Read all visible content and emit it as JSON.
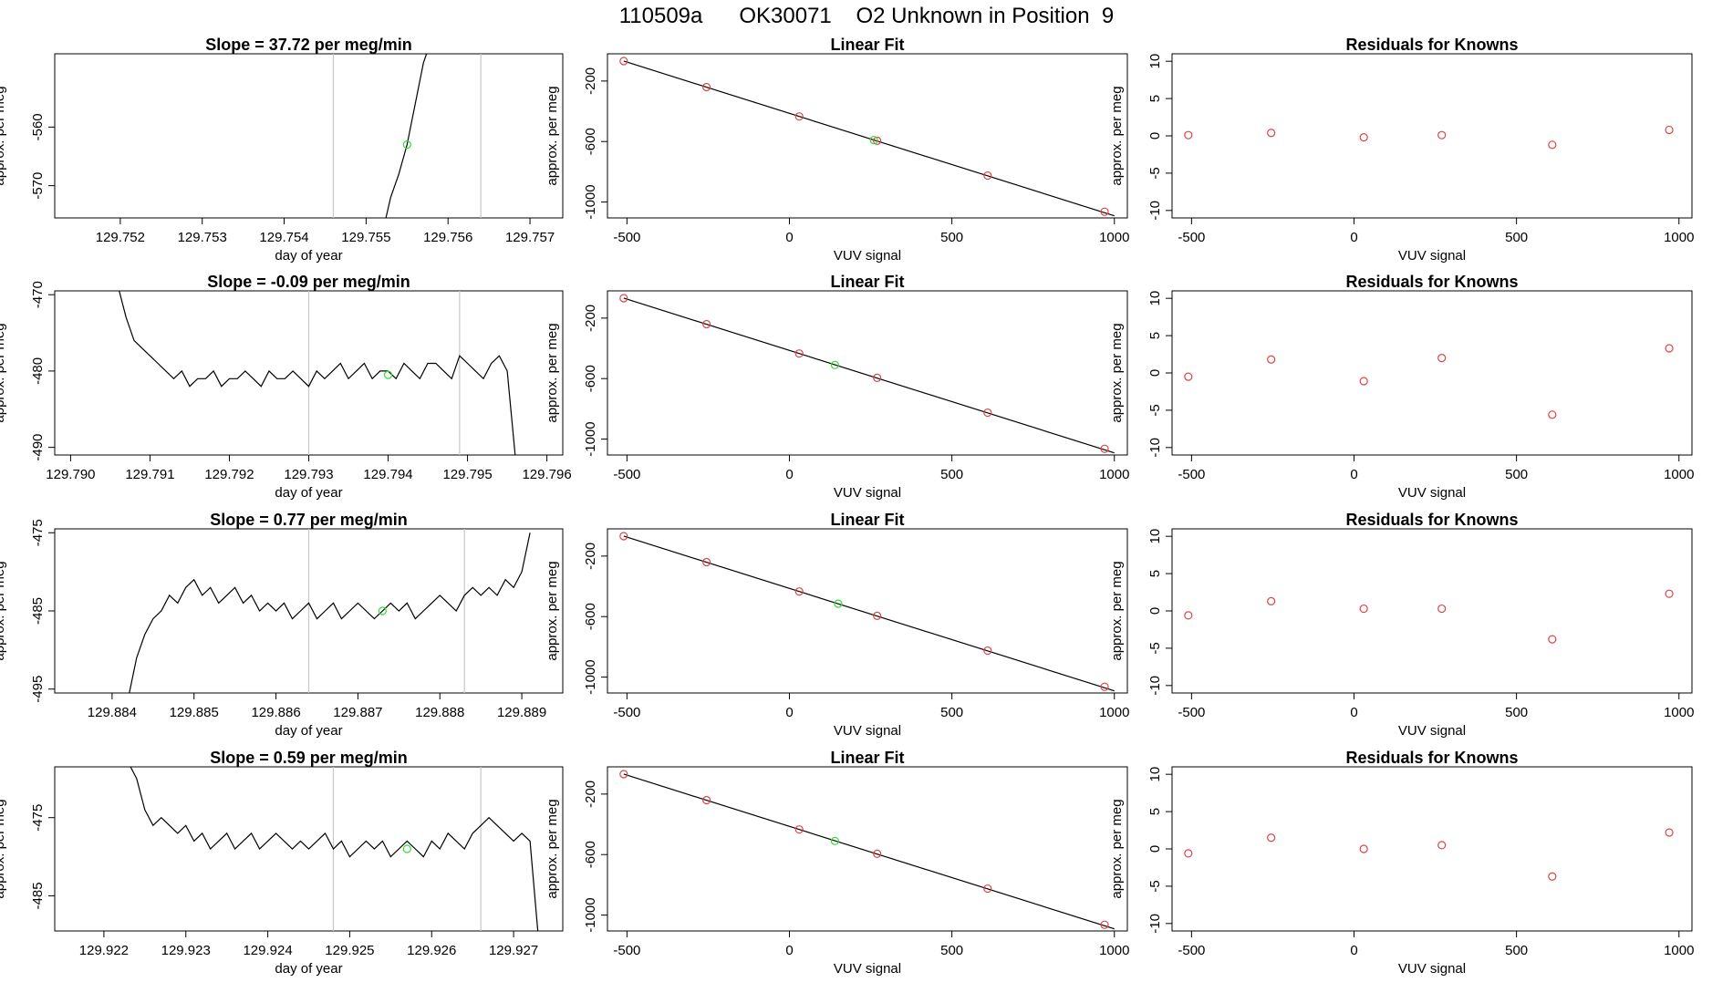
{
  "page_title": "110509a      OK30071    O2 Unknown in Position  9",
  "colors": {
    "line": "#000000",
    "known_points": "#dd4444",
    "unknown_point": "#33dd33",
    "marker_lines": "#c8c8c8",
    "fit_line": "#000000"
  },
  "chart_data": [
    {
      "type": "line",
      "title": "Slope =  37.72  per meg/min",
      "xlabel": "day of year",
      "ylabel": "approx. per meg",
      "xlim": [
        129.7512,
        129.7574
      ],
      "ylim": [
        -575.5,
        -547.5
      ],
      "xticks": [
        "129.752",
        "129.753",
        "129.754",
        "129.755",
        "129.756",
        "129.757"
      ],
      "yticks": [
        -560,
        -570
      ],
      "marker_lines_x": [
        129.7546,
        129.7564
      ],
      "unknown_point": [
        129.7555,
        -563
      ],
      "series": [
        {
          "x": [
            129.7552,
            129.7553,
            129.7554,
            129.7555,
            129.7556,
            129.7557,
            129.75575,
            129.7558
          ],
          "y": [
            -578,
            -572,
            -568,
            -563,
            -556,
            -549,
            -547,
            -546
          ]
        }
      ]
    },
    {
      "type": "line",
      "title": "Slope =  -0.09  per meg/min",
      "xlabel": "day of year",
      "ylabel": "approx. per meg",
      "xlim": [
        129.7898,
        129.7962
      ],
      "ylim": [
        -491,
        -469.5
      ],
      "xticks": [
        "129.790",
        "129.791",
        "129.792",
        "129.793",
        "129.794",
        "129.795",
        "129.796"
      ],
      "yticks": [
        -470,
        -480,
        -490
      ],
      "marker_lines_x": [
        129.793,
        129.7949
      ],
      "unknown_point": [
        129.794,
        -480.5
      ],
      "series": [
        {
          "x": [
            129.7906,
            129.7907,
            129.7908,
            129.7909,
            129.791,
            129.7911,
            129.7912,
            129.7913,
            129.7914,
            129.7915,
            129.7916,
            129.7917,
            129.7918,
            129.7919,
            129.792,
            129.7921,
            129.7922,
            129.7923,
            129.7924,
            129.7925,
            129.7926,
            129.7927,
            129.7928,
            129.7929,
            129.793,
            129.7931,
            129.7932,
            129.7933,
            129.7934,
            129.7935,
            129.7936,
            129.7937,
            129.7938,
            129.7939,
            129.794,
            129.7941,
            129.7942,
            129.7943,
            129.7944,
            129.7945,
            129.7946,
            129.7947,
            129.7948,
            129.7949,
            129.795,
            129.7951,
            129.7952,
            129.7953,
            129.7954,
            129.7955,
            129.7956
          ],
          "y": [
            -469,
            -473,
            -476,
            -477,
            -478,
            -479,
            -480,
            -481,
            -480,
            -482,
            -481,
            -481,
            -480,
            -482,
            -481,
            -481,
            -480,
            -481,
            -482,
            -480,
            -481,
            -481,
            -480,
            -481,
            -482,
            -480,
            -481,
            -480,
            -479,
            -481,
            -480,
            -479,
            -481,
            -480,
            -480,
            -481,
            -479,
            -480,
            -481,
            -479,
            -479,
            -480,
            -481,
            -478,
            -479,
            -480,
            -481,
            -479,
            -478,
            -480,
            -491
          ]
        }
      ]
    },
    {
      "type": "line",
      "title": "Slope =  0.77  per meg/min",
      "xlabel": "day of year",
      "ylabel": "approx. per meg",
      "xlim": [
        129.8833,
        129.8895
      ],
      "ylim": [
        -495.5,
        -474.5
      ],
      "xticks": [
        "129.884",
        "129.885",
        "129.886",
        "129.887",
        "129.888",
        "129.889"
      ],
      "yticks": [
        -475,
        -485,
        -495
      ],
      "marker_lines_x": [
        129.8864,
        129.8883
      ],
      "unknown_point": [
        129.8873,
        -485
      ],
      "series": [
        {
          "x": [
            129.8842,
            129.8843,
            129.8844,
            129.8845,
            129.8846,
            129.8847,
            129.8848,
            129.8849,
            129.885,
            129.8851,
            129.8852,
            129.8853,
            129.8854,
            129.8855,
            129.8856,
            129.8857,
            129.8858,
            129.8859,
            129.886,
            129.8861,
            129.8862,
            129.8863,
            129.8864,
            129.8865,
            129.8866,
            129.8867,
            129.8868,
            129.8869,
            129.887,
            129.8871,
            129.8872,
            129.8873,
            129.8874,
            129.8875,
            129.8876,
            129.8877,
            129.8878,
            129.8879,
            129.888,
            129.8881,
            129.8882,
            129.8883,
            129.8884,
            129.8885,
            129.8886,
            129.8887,
            129.8888,
            129.8889,
            129.889,
            129.8891
          ],
          "y": [
            -496,
            -491,
            -488,
            -486,
            -485,
            -483,
            -484,
            -482,
            -481,
            -483,
            -482,
            -484,
            -483,
            -482,
            -484,
            -483,
            -485,
            -484,
            -485,
            -484,
            -486,
            -485,
            -484,
            -486,
            -485,
            -484,
            -486,
            -485,
            -484,
            -485,
            -486,
            -485,
            -484,
            -485,
            -484,
            -486,
            -485,
            -484,
            -483,
            -484,
            -485,
            -483,
            -482,
            -483,
            -482,
            -483,
            -481,
            -482,
            -480,
            -475
          ]
        }
      ]
    },
    {
      "type": "line",
      "title": "Slope =  0.59  per meg/min",
      "xlabel": "day of year",
      "ylabel": "approx. per meg",
      "xlim": [
        129.9214,
        129.9276
      ],
      "ylim": [
        -489.5,
        -468.5
      ],
      "xticks": [
        "129.922",
        "129.923",
        "129.924",
        "129.925",
        "129.926",
        "129.927"
      ],
      "yticks": [
        -475,
        -485
      ],
      "marker_lines_x": [
        129.9248,
        129.9266
      ],
      "unknown_point": [
        129.9257,
        -479
      ],
      "series": [
        {
          "x": [
            129.9223,
            129.9224,
            129.9225,
            129.9226,
            129.9227,
            129.9228,
            129.9229,
            129.923,
            129.9231,
            129.9232,
            129.9233,
            129.9234,
            129.9235,
            129.9236,
            129.9237,
            129.9238,
            129.9239,
            129.924,
            129.9241,
            129.9242,
            129.9243,
            129.9244,
            129.9245,
            129.9246,
            129.9247,
            129.9248,
            129.9249,
            129.925,
            129.9251,
            129.9252,
            129.9253,
            129.9254,
            129.9255,
            129.9256,
            129.9257,
            129.9258,
            129.9259,
            129.926,
            129.9261,
            129.9262,
            129.9263,
            129.9264,
            129.9265,
            129.9266,
            129.9267,
            129.9268,
            129.9269,
            129.927,
            129.9271,
            129.9272,
            129.9273
          ],
          "y": [
            -468,
            -470,
            -474,
            -476,
            -475,
            -476,
            -477,
            -476,
            -478,
            -477,
            -479,
            -478,
            -477,
            -479,
            -478,
            -477,
            -479,
            -478,
            -477,
            -478,
            -479,
            -478,
            -479,
            -478,
            -477,
            -479,
            -478,
            -480,
            -479,
            -478,
            -479,
            -478,
            -480,
            -479,
            -478,
            -479,
            -480,
            -478,
            -479,
            -477,
            -478,
            -479,
            -477,
            -476,
            -475,
            -476,
            -477,
            -478,
            -477,
            -478,
            -490
          ]
        }
      ]
    },
    {
      "type": "scatter",
      "title": "Linear Fit",
      "xlabel": "VUV signal",
      "ylabel": "approx. per meg",
      "xlim": [
        -560,
        1040
      ],
      "ylim": [
        -1105,
        -20
      ],
      "xticks": [
        -500,
        0,
        500,
        1000
      ],
      "yticks": [
        -200,
        -600,
        -1000
      ],
      "fit_line": {
        "x": [
          -510,
          1000
        ],
        "y": [
          -68,
          -1091
        ]
      },
      "knowns": {
        "x": [
          -510,
          -255,
          30,
          270,
          610,
          970
        ],
        "y": [
          -68,
          -240,
          -434,
          -595,
          -825,
          -1064
        ]
      },
      "unknown": {
        "x": [
          260
        ],
        "y": [
          -590
        ]
      }
    },
    {
      "type": "scatter",
      "title": "Linear Fit",
      "xlabel": "VUV signal",
      "ylabel": "approx. per meg",
      "xlim": [
        -560,
        1040
      ],
      "ylim": [
        -1105,
        -20
      ],
      "xticks": [
        -500,
        0,
        500,
        1000
      ],
      "yticks": [
        -200,
        -600,
        -1000
      ],
      "fit_line": {
        "x": [
          -510,
          1000
        ],
        "y": [
          -68,
          -1091
        ]
      },
      "knowns": {
        "x": [
          -510,
          -255,
          30,
          270,
          610,
          970
        ],
        "y": [
          -68,
          -240,
          -434,
          -595,
          -825,
          -1064
        ]
      },
      "unknown": {
        "x": [
          140
        ],
        "y": [
          -510
        ]
      }
    },
    {
      "type": "scatter",
      "title": "Linear Fit",
      "xlabel": "VUV signal",
      "ylabel": "approx. per meg",
      "xlim": [
        -560,
        1040
      ],
      "ylim": [
        -1105,
        -20
      ],
      "xticks": [
        -500,
        0,
        500,
        1000
      ],
      "yticks": [
        -200,
        -600,
        -1000
      ],
      "fit_line": {
        "x": [
          -510,
          1000
        ],
        "y": [
          -68,
          -1091
        ]
      },
      "knowns": {
        "x": [
          -510,
          -255,
          30,
          270,
          610,
          970
        ],
        "y": [
          -68,
          -240,
          -434,
          -595,
          -825,
          -1064
        ]
      },
      "unknown": {
        "x": [
          150
        ],
        "y": [
          -515
        ]
      }
    },
    {
      "type": "scatter",
      "title": "Linear Fit",
      "xlabel": "VUV signal",
      "ylabel": "approx. per meg",
      "xlim": [
        -560,
        1040
      ],
      "ylim": [
        -1105,
        -20
      ],
      "xticks": [
        -500,
        0,
        500,
        1000
      ],
      "yticks": [
        -200,
        -600,
        -1000
      ],
      "fit_line": {
        "x": [
          -510,
          1000
        ],
        "y": [
          -68,
          -1091
        ]
      },
      "knowns": {
        "x": [
          -510,
          -255,
          30,
          270,
          610,
          970
        ],
        "y": [
          -68,
          -240,
          -434,
          -595,
          -825,
          -1064
        ]
      },
      "unknown": {
        "x": [
          140
        ],
        "y": [
          -510
        ]
      }
    },
    {
      "type": "scatter",
      "title": "Residuals for Knowns",
      "xlabel": "VUV signal",
      "ylabel": "approx. per meg",
      "xlim": [
        -560,
        1040
      ],
      "ylim": [
        -11,
        11
      ],
      "xticks": [
        -500,
        0,
        500,
        1000
      ],
      "yticks": [
        10,
        5,
        0,
        -5,
        -10
      ],
      "x": [
        -510,
        -255,
        30,
        270,
        610,
        970
      ],
      "y": [
        0.1,
        0.4,
        -0.2,
        0.1,
        -1.2,
        0.8
      ]
    },
    {
      "type": "scatter",
      "title": "Residuals for Knowns",
      "xlabel": "VUV signal",
      "ylabel": "approx. per meg",
      "xlim": [
        -560,
        1040
      ],
      "ylim": [
        -11,
        11
      ],
      "xticks": [
        -500,
        0,
        500,
        1000
      ],
      "yticks": [
        10,
        5,
        0,
        -5,
        -10
      ],
      "x": [
        -510,
        -255,
        30,
        270,
        610,
        970
      ],
      "y": [
        -0.5,
        1.8,
        -1.1,
        2.0,
        -5.6,
        3.3
      ]
    },
    {
      "type": "scatter",
      "title": "Residuals for Knowns",
      "xlabel": "VUV signal",
      "ylabel": "approx. per meg",
      "xlim": [
        -560,
        1040
      ],
      "ylim": [
        -11,
        11
      ],
      "xticks": [
        -500,
        0,
        500,
        1000
      ],
      "yticks": [
        10,
        5,
        0,
        -5,
        -10
      ],
      "x": [
        -510,
        -255,
        30,
        270,
        610,
        970
      ],
      "y": [
        -0.6,
        1.3,
        0.3,
        0.3,
        -3.8,
        2.3
      ]
    },
    {
      "type": "scatter",
      "title": "Residuals for Knowns",
      "xlabel": "VUV signal",
      "ylabel": "approx. per meg",
      "xlim": [
        -560,
        1040
      ],
      "ylim": [
        -11,
        11
      ],
      "xticks": [
        -500,
        0,
        500,
        1000
      ],
      "yticks": [
        10,
        5,
        0,
        -5,
        -10
      ],
      "x": [
        -510,
        -255,
        30,
        270,
        610,
        970
      ],
      "y": [
        -0.6,
        1.5,
        0.0,
        0.5,
        -3.7,
        2.2
      ]
    }
  ]
}
